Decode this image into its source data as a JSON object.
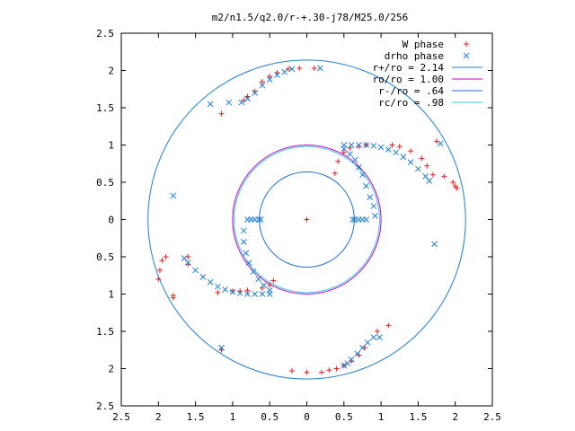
{
  "chart_data": {
    "type": "scatter",
    "title": "m2/n1.5/q2.0/r-+.30-j78/M25.0/256",
    "xlim": [
      -2.5,
      2.5
    ],
    "ylim": [
      -2.5,
      2.5
    ],
    "x_ticks": [
      -2.5,
      -2,
      -1.5,
      -1,
      -0.5,
      0,
      0.5,
      1,
      1.5,
      2,
      2.5
    ],
    "x_tick_labels": [
      "2.5",
      "2",
      "1.5",
      "1",
      "0.5",
      "0",
      "0.5",
      "1",
      "1.5",
      "2",
      "2.5"
    ],
    "y_ticks": [
      2.5,
      2,
      1.5,
      1,
      0.5,
      0,
      -0.5,
      -1,
      -1.5,
      -2,
      -2.5
    ],
    "y_tick_labels": [
      "2.5",
      "2",
      "1.5",
      "1",
      "0.5",
      "0",
      "0.5",
      "1",
      "1.5",
      "2",
      "2.5"
    ],
    "legend_position": "top-right",
    "grid": false,
    "circles": [
      {
        "name": "r+/ro = 2.14",
        "radius": 2.14,
        "color": "#1f7fd0"
      },
      {
        "name": "ro/ro = 1.00",
        "radius": 1.0,
        "color": "#c000c0"
      },
      {
        "name": "r-/ro = .64",
        "radius": 0.64,
        "color": "#1f6fd0"
      },
      {
        "name": "rc/ro = .98",
        "radius": 0.98,
        "color": "#40c8e8"
      }
    ],
    "series": [
      {
        "name": "W phase",
        "marker": "+",
        "color": "#e02020",
        "points": [
          [
            1.15,
            1.0
          ],
          [
            1.25,
            0.98
          ],
          [
            1.4,
            0.92
          ],
          [
            1.55,
            0.82
          ],
          [
            1.62,
            0.72
          ],
          [
            1.7,
            0.6
          ],
          [
            1.75,
            1.05
          ],
          [
            1.85,
            0.58
          ],
          [
            1.97,
            0.5
          ],
          [
            2.0,
            0.45
          ],
          [
            2.02,
            0.42
          ],
          [
            0.8,
            1.0
          ],
          [
            0.7,
            0.98
          ],
          [
            0.58,
            0.96
          ],
          [
            0.5,
            0.9
          ],
          [
            0.42,
            0.78
          ],
          [
            0.38,
            0.62
          ],
          [
            1.1,
            -1.42
          ],
          [
            0.95,
            -1.5
          ],
          [
            0.78,
            -1.72
          ],
          [
            0.7,
            -1.82
          ],
          [
            0.6,
            -1.9
          ],
          [
            0.5,
            -1.96
          ],
          [
            0.4,
            -2.0
          ],
          [
            0.3,
            -2.02
          ],
          [
            0.2,
            -2.05
          ],
          [
            0.0,
            -2.05
          ],
          [
            -0.2,
            -2.03
          ],
          [
            -1.15,
            -1.75
          ],
          [
            -1.2,
            -0.98
          ],
          [
            -1.0,
            -0.96
          ],
          [
            -0.9,
            -0.96
          ],
          [
            -0.8,
            -0.95
          ],
          [
            -0.6,
            -0.92
          ],
          [
            -0.5,
            -0.88
          ],
          [
            -0.45,
            -0.82
          ],
          [
            -1.9,
            -0.5
          ],
          [
            -1.95,
            -0.55
          ],
          [
            -1.98,
            -0.68
          ],
          [
            -2.0,
            -0.8
          ],
          [
            -1.8,
            -1.05
          ],
          [
            -1.8,
            -1.02
          ],
          [
            -1.6,
            -0.5
          ],
          [
            -1.6,
            -0.6
          ],
          [
            -1.15,
            1.42
          ],
          [
            -0.85,
            1.6
          ],
          [
            -0.8,
            1.65
          ],
          [
            -0.7,
            1.72
          ],
          [
            -0.6,
            1.85
          ],
          [
            -0.5,
            1.92
          ],
          [
            -0.4,
            1.97
          ],
          [
            -0.25,
            2.02
          ],
          [
            -0.1,
            2.03
          ],
          [
            0.1,
            2.03
          ],
          [
            0.0,
            0.0
          ]
        ]
      },
      {
        "name": "drho phase",
        "marker": "x",
        "color": "#1f7fd0",
        "points": [
          [
            1.8,
            1.02
          ],
          [
            1.72,
            -0.33
          ],
          [
            0.98,
            -1.58
          ],
          [
            -1.15,
            -1.72
          ],
          [
            -1.8,
            0.32
          ],
          [
            -0.88,
            1.57
          ],
          [
            0.18,
            2.03
          ],
          [
            0.5,
            1.0
          ],
          [
            0.6,
            1.0
          ],
          [
            0.7,
            1.0
          ],
          [
            0.8,
            1.0
          ],
          [
            0.9,
            0.99
          ],
          [
            1.0,
            0.97
          ],
          [
            1.1,
            0.94
          ],
          [
            1.2,
            0.9
          ],
          [
            1.3,
            0.84
          ],
          [
            1.4,
            0.77
          ],
          [
            1.5,
            0.68
          ],
          [
            1.6,
            0.58
          ],
          [
            1.65,
            0.52
          ],
          [
            0.5,
            0.95
          ],
          [
            0.58,
            0.88
          ],
          [
            0.65,
            0.8
          ],
          [
            0.7,
            0.7
          ],
          [
            0.75,
            0.6
          ],
          [
            0.8,
            0.45
          ],
          [
            0.85,
            0.3
          ],
          [
            0.9,
            0.18
          ],
          [
            0.92,
            0.05
          ],
          [
            0.62,
            0.0
          ],
          [
            0.65,
            0.0
          ],
          [
            0.7,
            0.0
          ],
          [
            0.75,
            0.0
          ],
          [
            0.8,
            0.0
          ],
          [
            -0.62,
            0.0
          ],
          [
            -0.65,
            0.0
          ],
          [
            -0.7,
            0.0
          ],
          [
            -0.75,
            0.0
          ],
          [
            -0.8,
            0.0
          ],
          [
            -0.85,
            -0.15
          ],
          [
            -0.85,
            -0.3
          ],
          [
            -0.82,
            -0.45
          ],
          [
            -0.78,
            -0.58
          ],
          [
            -0.72,
            -0.7
          ],
          [
            -0.65,
            -0.8
          ],
          [
            -0.58,
            -0.88
          ],
          [
            -0.5,
            -0.95
          ],
          [
            -0.5,
            -1.0
          ],
          [
            -0.6,
            -1.0
          ],
          [
            -0.7,
            -1.0
          ],
          [
            -0.8,
            -1.0
          ],
          [
            -0.9,
            -0.99
          ],
          [
            -1.0,
            -0.97
          ],
          [
            -1.1,
            -0.94
          ],
          [
            -1.2,
            -0.9
          ],
          [
            -1.3,
            -0.84
          ],
          [
            -1.4,
            -0.77
          ],
          [
            -1.5,
            -0.68
          ],
          [
            -1.6,
            -0.58
          ],
          [
            -1.65,
            -0.52
          ],
          [
            -0.8,
            1.62
          ],
          [
            -0.7,
            1.7
          ],
          [
            -0.6,
            1.8
          ],
          [
            -0.5,
            1.88
          ],
          [
            -0.4,
            1.94
          ],
          [
            -0.3,
            1.98
          ],
          [
            -0.2,
            2.02
          ],
          [
            0.5,
            -1.96
          ],
          [
            0.55,
            -1.93
          ],
          [
            0.6,
            -1.88
          ],
          [
            0.68,
            -1.8
          ],
          [
            0.75,
            -1.72
          ],
          [
            0.82,
            -1.65
          ],
          [
            0.9,
            -1.58
          ],
          [
            -1.05,
            1.57
          ],
          [
            -1.3,
            1.55
          ]
        ]
      }
    ]
  }
}
